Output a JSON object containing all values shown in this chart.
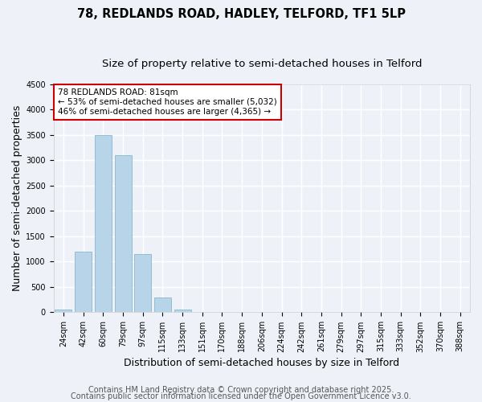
{
  "title1": "78, REDLANDS ROAD, HADLEY, TELFORD, TF1 5LP",
  "title2": "Size of property relative to semi-detached houses in Telford",
  "xlabel": "Distribution of semi-detached houses by size in Telford",
  "ylabel": "Number of semi-detached properties",
  "categories": [
    "24sqm",
    "42sqm",
    "60sqm",
    "79sqm",
    "97sqm",
    "115sqm",
    "133sqm",
    "151sqm",
    "170sqm",
    "188sqm",
    "206sqm",
    "224sqm",
    "242sqm",
    "261sqm",
    "279sqm",
    "297sqm",
    "315sqm",
    "333sqm",
    "352sqm",
    "370sqm",
    "388sqm"
  ],
  "values": [
    50,
    1200,
    3500,
    3100,
    1150,
    300,
    50,
    10,
    5,
    3,
    2,
    1,
    1,
    0,
    0,
    0,
    0,
    0,
    0,
    0,
    0
  ],
  "bar_color": "#b8d4e8",
  "bar_edge_color": "#7aafc8",
  "highlight_index": 3,
  "ylim": [
    0,
    4500
  ],
  "yticks": [
    0,
    500,
    1000,
    1500,
    2000,
    2500,
    3000,
    3500,
    4000,
    4500
  ],
  "annotation_box_text": "78 REDLANDS ROAD: 81sqm\n← 53% of semi-detached houses are smaller (5,032)\n46% of semi-detached houses are larger (4,365) →",
  "annotation_box_color": "#cc0000",
  "footer1": "Contains HM Land Registry data © Crown copyright and database right 2025.",
  "footer2": "Contains public sector information licensed under the Open Government Licence v3.0.",
  "bg_color": "#eef2f8",
  "grid_color": "#ffffff",
  "title_fontsize": 10.5,
  "subtitle_fontsize": 9.5,
  "axis_label_fontsize": 9,
  "tick_fontsize": 7,
  "footer_fontsize": 7,
  "annot_fontsize": 7.5
}
